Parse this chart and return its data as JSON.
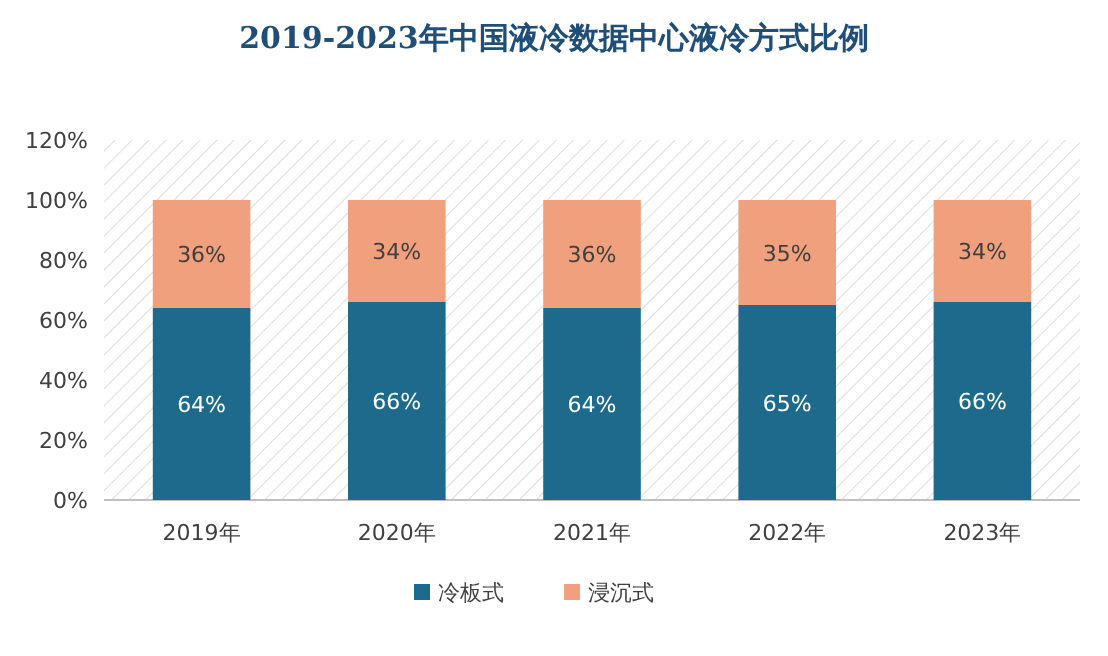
{
  "chart_data": {
    "type": "bar",
    "title": "2019-2023年中国液冷数据中心液冷方式比例",
    "categories": [
      "2019年",
      "2020年",
      "2021年",
      "2022年",
      "2023年"
    ],
    "stacked": true,
    "series": [
      {
        "name": "冷板式",
        "color": "#1d6a8c",
        "values": [
          64,
          66,
          64,
          65,
          66
        ],
        "value_labels": [
          "64%",
          "66%",
          "64%",
          "65%",
          "66%"
        ]
      },
      {
        "name": "浸沉式",
        "color": "#f0a07c",
        "values": [
          36,
          34,
          36,
          35,
          34
        ],
        "value_labels": [
          "36%",
          "34%",
          "36%",
          "35%",
          "34%"
        ]
      }
    ],
    "ylim": [
      0,
      120
    ],
    "yticks": [
      {
        "value": 0,
        "label": "0%"
      },
      {
        "value": 20,
        "label": "20%"
      },
      {
        "value": 40,
        "label": "40%"
      },
      {
        "value": 60,
        "label": "60%"
      },
      {
        "value": 80,
        "label": "80%"
      },
      {
        "value": 100,
        "label": "100%"
      },
      {
        "value": 120,
        "label": "120%"
      }
    ],
    "grid": false,
    "legend": "bottom"
  }
}
